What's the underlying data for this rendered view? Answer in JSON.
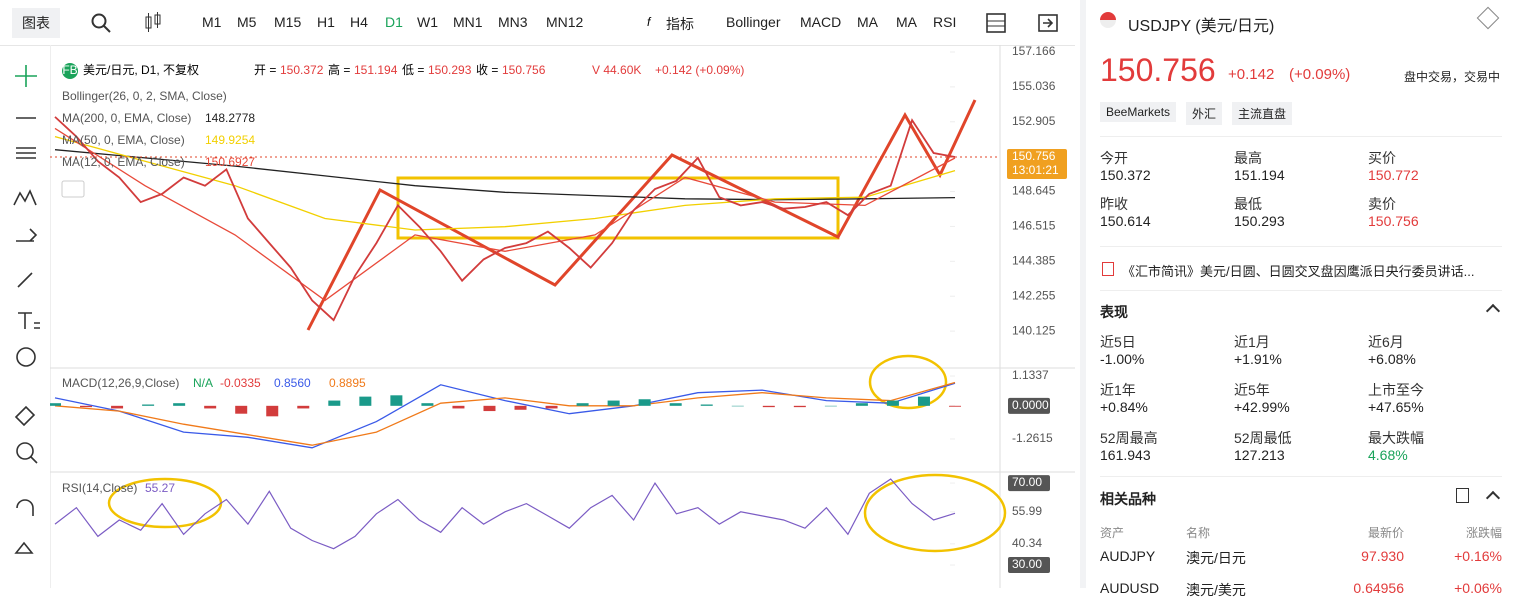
{
  "toolbar": {
    "chart_menu": "图表",
    "timeframes": [
      "M1",
      "M5",
      "M15",
      "H1",
      "H4",
      "D1",
      "W1",
      "MN1",
      "MN3",
      "MN12"
    ],
    "indicators_menu": "指标",
    "indicators": [
      "Bollinger",
      "MACD",
      "MA",
      "MA",
      "RSI"
    ]
  },
  "legend": {
    "badge": "FB",
    "symbol": "美元/日元, D1, 不复权",
    "ohlc": [
      {
        "label": "开 =",
        "value": "150.372"
      },
      {
        "label": "高 =",
        "value": "151.194"
      },
      {
        "label": "低 =",
        "value": "150.293"
      },
      {
        "label": "收 =",
        "value": "150.756"
      }
    ],
    "volume": "V 44.60K",
    "change": "+0.142 (+0.09%)",
    "bollinger": "Bollinger(26, 0, 2, SMA, Close)",
    "ma_values": [
      "148.2778",
      "149.9254",
      "150.6927"
    ],
    "macd_values": [
      "N/A",
      "-0.0335",
      "0.8560",
      "0.8895"
    ],
    "rsi_value": "55.27",
    "price_badge": "150.756",
    "countdown": "13:01:21"
  },
  "chart_data": [
    {
      "type": "line",
      "color": "#d23c3c",
      "values": [
        153.2,
        152.0,
        150.5,
        149.5,
        148.0,
        148.5,
        149.5,
        149.0,
        150.0,
        147.0,
        145.5,
        144.0,
        142.0,
        140.8,
        143.5,
        145.5,
        147.8,
        146.5,
        145.0,
        143.2,
        144.5,
        145.2,
        145.5,
        146.2,
        145.2,
        144.0,
        145.5,
        147.5,
        148.8,
        149.3,
        150.7,
        148.3,
        147.8,
        148.0,
        147.6,
        147.7,
        148.0,
        147.2,
        148.5,
        149.0,
        153.0,
        151.0,
        150.756
      ],
      "series": [
        {
          "name": "MA(200, 0, EMA, Close)",
          "color": "#222222",
          "values": [
            151.2,
            150.7,
            150.2,
            149.6,
            149.0,
            148.6,
            148.4,
            148.2,
            148.15,
            148.2,
            148.2778
          ]
        },
        {
          "name": "MA(50, 0, EMA, Close)",
          "color": "#f2d000",
          "values": [
            152.0,
            150.5,
            149.0,
            147.0,
            146.3,
            146.5,
            147.0,
            147.8,
            148.2,
            148.3,
            149.9254
          ]
        },
        {
          "name": "MA(12, 0, EMA, Close)",
          "color": "#e84a3a",
          "values": [
            152.5,
            149.0,
            146.0,
            142.0,
            146.0,
            145.0,
            146.0,
            149.5,
            148.0,
            147.8,
            150.6927
          ]
        }
      ],
      "ylim": [
        137.873,
        157.592
      ],
      "yticks": [
        157.166,
        155.036,
        152.905,
        148.645,
        146.515,
        144.385,
        142.255,
        140.125
      ]
    },
    {
      "type": "bar",
      "title": "MACD(12,26,9,Close)",
      "color": "#d23c3c",
      "values": [
        0.1,
        -0.05,
        -0.1,
        0.05,
        0.1,
        -0.1,
        -0.3,
        -0.4,
        -0.1,
        0.2,
        0.35,
        0.4,
        0.1,
        -0.1,
        -0.2,
        -0.15,
        -0.1,
        0.1,
        0.2,
        0.25,
        0.1,
        0.05,
        0.0,
        -0.05,
        -0.05,
        0.0,
        0.1,
        0.2,
        0.35,
        -0.0335
      ],
      "series": [
        {
          "color": "#3a5ae8",
          "values": [
            0.3,
            -0.2,
            -1.0,
            -1.2,
            -1.6,
            -0.6,
            0.8,
            0.2,
            -0.3,
            0.0,
            0.5,
            0.6,
            0.2,
            0.1,
            0.856
          ]
        },
        {
          "color": "#f07a1a",
          "values": [
            0.0,
            -0.2,
            -0.7,
            -1.1,
            -1.5,
            -1.0,
            0.1,
            0.3,
            0.0,
            0.0,
            0.3,
            0.5,
            0.3,
            0.2,
            0.8895
          ]
        }
      ],
      "ylim": [
        -2.52,
        1.44
      ],
      "yticks": [
        1.1337,
        {
          "value": 0,
          "label": "0.0000"
        },
        -1.2615
      ]
    },
    {
      "type": "line",
      "title": "RSI(14,Close)",
      "color": "#7b5cc4",
      "values": [
        50,
        58,
        44,
        52,
        47,
        60,
        45,
        55,
        62,
        50,
        66,
        48,
        42,
        38,
        44,
        55,
        62,
        52,
        46,
        58,
        50,
        56,
        60,
        54,
        48,
        58,
        64,
        52,
        70,
        55,
        58,
        50,
        56,
        54,
        52,
        48,
        58,
        45,
        65,
        72,
        60,
        52,
        55.27
      ],
      "ylim": [
        18.8,
        75.4
      ],
      "yticks": [
        {
          "value": 70,
          "label": "70.00"
        },
        55.99,
        40.34,
        {
          "value": 30,
          "label": "30.00"
        }
      ]
    }
  ],
  "quote": {
    "symbol": "USDJPY (美元/日元)",
    "price": "150.756",
    "change": "+0.142",
    "change_pct": "(+0.09%)",
    "status": "盘中交易，交易中",
    "tags": [
      "BeeMarkets",
      "外汇",
      "主流直盘"
    ],
    "stats": [
      [
        "今开",
        "150.372"
      ],
      [
        "最高",
        "151.194"
      ],
      [
        "买价",
        "150.772"
      ],
      [
        "昨收",
        "150.614"
      ],
      [
        "最低",
        "150.293"
      ],
      [
        "卖价",
        "150.756"
      ]
    ],
    "news": "《汇市简讯》美元/日圆、日圆交叉盘因鹰派日央行委员讲话..."
  },
  "performance": {
    "title": "表现",
    "items": [
      [
        "近5日",
        "-1.00%"
      ],
      [
        "近1月",
        "+1.91%"
      ],
      [
        "近6月",
        "+6.08%"
      ],
      [
        "近1年",
        "+0.84%"
      ],
      [
        "近5年",
        "+42.99%"
      ],
      [
        "上市至今",
        "+47.65%"
      ],
      [
        "52周最高",
        "161.943"
      ],
      [
        "52周最低",
        "127.213"
      ],
      [
        "最大跌幅",
        "4.68%"
      ]
    ]
  },
  "related": {
    "title": "相关品种",
    "headers": [
      "资产",
      "名称",
      "最新价",
      "涨跌幅"
    ],
    "rows": [
      [
        "AUDJPY",
        "澳元/日元",
        "97.930",
        "+0.16%"
      ],
      [
        "AUDUSD",
        "澳元/美元",
        "0.64956",
        "+0.06%"
      ]
    ]
  }
}
